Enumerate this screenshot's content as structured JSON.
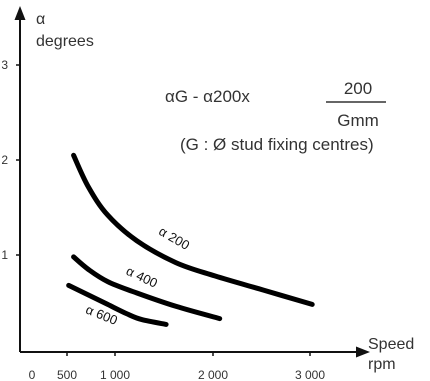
{
  "chart_data": {
    "type": "line",
    "x": {
      "label_line1": "Speed",
      "label_line2": "rpm",
      "ticks": [
        "0",
        "500",
        "1 000",
        "2 000",
        "3 000"
      ],
      "tick_values": [
        0,
        500,
        1000,
        2000,
        3000
      ],
      "range": [
        0,
        3000
      ]
    },
    "y": {
      "label_line1": "α",
      "label_line2": "degrees",
      "ticks": [
        "1",
        "2",
        "3"
      ],
      "tick_values": [
        1,
        2,
        3
      ],
      "range": [
        0,
        3.5
      ]
    },
    "formula": {
      "lhs": "αG - α200x",
      "numerator": "200",
      "denominator": "Gmm",
      "note": "(G : Ø stud fixing centres)"
    },
    "grid": false,
    "series": [
      {
        "name": "α 200",
        "points": [
          [
            550,
            2.05
          ],
          [
            700,
            1.72
          ],
          [
            900,
            1.42
          ],
          [
            1200,
            1.15
          ],
          [
            1600,
            0.92
          ],
          [
            2000,
            0.78
          ],
          [
            2500,
            0.63
          ],
          [
            3000,
            0.48
          ]
        ]
      },
      {
        "name": "α 400",
        "points": [
          [
            550,
            0.98
          ],
          [
            700,
            0.85
          ],
          [
            900,
            0.72
          ],
          [
            1200,
            0.6
          ],
          [
            1600,
            0.46
          ],
          [
            2050,
            0.33
          ]
        ]
      },
      {
        "name": "α 600",
        "points": [
          [
            500,
            0.68
          ],
          [
            700,
            0.58
          ],
          [
            900,
            0.48
          ],
          [
            1100,
            0.38
          ],
          [
            1250,
            0.32
          ],
          [
            1500,
            0.27
          ]
        ]
      }
    ]
  }
}
